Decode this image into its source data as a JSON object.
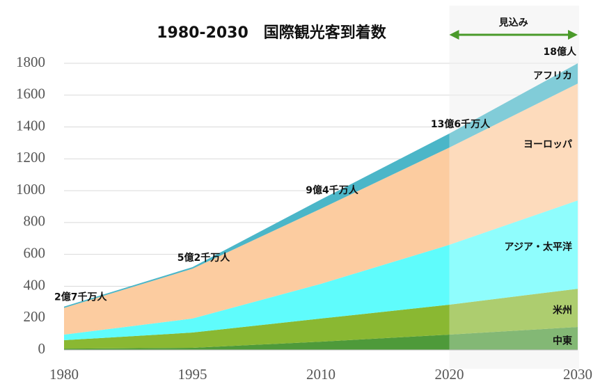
{
  "chart_data": {
    "type": "area",
    "title": "1980-2030　国際観光客到着数",
    "forecast_label": "見込み",
    "categories": [
      "1980",
      "1995",
      "2010",
      "2020",
      "2030"
    ],
    "series": [
      {
        "name": "中東",
        "color": "#4e9a3a",
        "values": [
          8,
          13,
          52,
          96,
          144
        ]
      },
      {
        "name": "米州",
        "color": "#8ab832",
        "values": [
          53,
          96,
          145,
          188,
          240
        ]
      },
      {
        "name": "アジア・太平洋",
        "color": "#5ffcfc",
        "values": [
          35,
          88,
          218,
          376,
          555
        ]
      },
      {
        "name": "ヨーロッパ",
        "color": "#fccca0",
        "values": [
          168,
          313,
          472,
          611,
          734
        ]
      },
      {
        "name": "アフリカ",
        "color": "#4bb6c8",
        "values": [
          8,
          10,
          57,
          88,
          127
        ]
      }
    ],
    "annotations": [
      "2億7千万人",
      "5億2千万人",
      "9億4千万人",
      "13億6千万人",
      "18億人"
    ],
    "ylim": [
      0,
      1800
    ],
    "yticks": [
      0,
      200,
      400,
      600,
      800,
      1000,
      1200,
      1400,
      1600,
      1800
    ],
    "grid": true
  }
}
